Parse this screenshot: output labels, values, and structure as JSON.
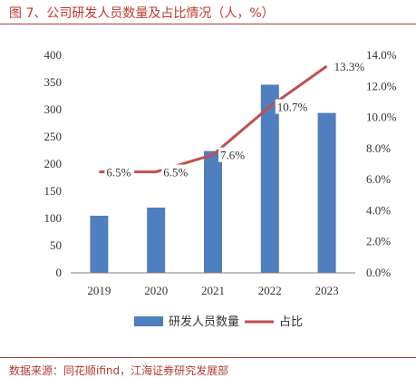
{
  "title": "图 7、公司研发人员数量及占比情况（人，%）",
  "source": "数据来源：同花顺ifind，江海证券研究发展部",
  "colors": {
    "bar": "#4f7fbe",
    "line": "#c0504d",
    "title": "#c0392b"
  },
  "chart_data": {
    "type": "bar",
    "categories": [
      "2019",
      "2020",
      "2021",
      "2022",
      "2023"
    ],
    "series": [
      {
        "name": "研发人员数量",
        "type": "bar",
        "axis": "left",
        "values": [
          105,
          120,
          224,
          346,
          294
        ]
      },
      {
        "name": "占比",
        "type": "line",
        "axis": "right",
        "values": [
          6.5,
          6.5,
          7.6,
          10.7,
          13.3
        ],
        "labels": [
          "6.5%",
          "6.5%",
          "7.6%",
          "10.7%",
          "13.3%"
        ]
      }
    ],
    "y_left": {
      "ylim": [
        0,
        400
      ],
      "ticks": [
        "0",
        "50",
        "100",
        "150",
        "200",
        "250",
        "300",
        "350",
        "400"
      ]
    },
    "y_right": {
      "ylim": [
        0,
        14
      ],
      "ticks": [
        "0.0%",
        "2.0%",
        "4.0%",
        "6.0%",
        "8.0%",
        "10.0%",
        "12.0%",
        "14.0%"
      ]
    },
    "legend": {
      "placement": "bottom",
      "items": [
        "研发人员数量",
        "占比"
      ]
    },
    "grid": false
  }
}
